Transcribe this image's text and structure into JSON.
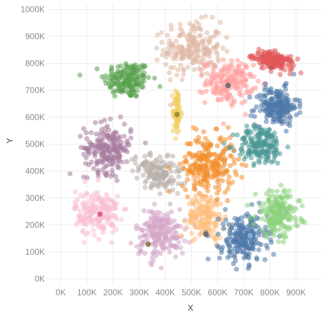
{
  "chart_data": {
    "type": "scatter",
    "title": "",
    "xlabel": "X",
    "ylabel": "Y",
    "xlim": [
      -50000,
      1000000
    ],
    "ylim": [
      -20000,
      1020000
    ],
    "grid": true,
    "x_ticks": [
      0,
      100000,
      200000,
      300000,
      400000,
      500000,
      600000,
      700000,
      800000,
      900000
    ],
    "x_tick_labels": [
      "0K",
      "100K",
      "200K",
      "300K",
      "400K",
      "500K",
      "600K",
      "700K",
      "800K",
      "900K"
    ],
    "y_ticks": [
      0,
      100000,
      200000,
      300000,
      400000,
      500000,
      600000,
      700000,
      800000,
      900000,
      1000000
    ],
    "y_tick_labels": [
      "0K",
      "100K",
      "200K",
      "300K",
      "400K",
      "500K",
      "600K",
      "700K",
      "800K",
      "900K",
      "1000K"
    ],
    "clusters": [
      {
        "color": "#59a14f",
        "center": [
          255000,
          740000
        ],
        "spread": [
          45000,
          35000
        ],
        "n": 170
      },
      {
        "color": "#e0b8a6",
        "center": [
          505000,
          855000
        ],
        "spread": [
          55000,
          50000
        ],
        "n": 200
      },
      {
        "color": "#e15759",
        "center": [
          815000,
          810000
        ],
        "spread": [
          40000,
          15000
        ],
        "n": 160,
        "rotation": -15
      },
      {
        "color": "#ff9d9a",
        "center": [
          645000,
          730000
        ],
        "spread": [
          45000,
          40000
        ],
        "n": 170
      },
      {
        "color": "#4e79a7",
        "center": [
          825000,
          640000
        ],
        "spread": [
          40000,
          35000
        ],
        "n": 200
      },
      {
        "color": "#f1ce63",
        "center": [
          445000,
          620000
        ],
        "spread": [
          8000,
          45000
        ],
        "n": 60
      },
      {
        "color": "#499894",
        "center": [
          765000,
          495000
        ],
        "spread": [
          45000,
          35000
        ],
        "n": 170
      },
      {
        "color": "#a87c9f",
        "center": [
          180000,
          485000
        ],
        "spread": [
          45000,
          45000
        ],
        "n": 210
      },
      {
        "color": "#bab0ac",
        "center": [
          370000,
          395000
        ],
        "spread": [
          45000,
          30000
        ],
        "n": 160,
        "rotation": -25
      },
      {
        "color": "#f28e2b",
        "center": [
          565000,
          425000
        ],
        "spread": [
          50000,
          55000
        ],
        "n": 240
      },
      {
        "color": "#fabfd2",
        "center": [
          140000,
          245000
        ],
        "spread": [
          42000,
          42000
        ],
        "n": 190
      },
      {
        "color": "#d4a6c8",
        "center": [
          380000,
          170000
        ],
        "spread": [
          48000,
          45000
        ],
        "n": 200
      },
      {
        "color": "#ffbe7d",
        "center": [
          555000,
          230000
        ],
        "spread": [
          35000,
          40000
        ],
        "n": 150
      },
      {
        "color": "#4e79a7",
        "center": [
          700000,
          150000
        ],
        "spread": [
          45000,
          45000
        ],
        "n": 220
      },
      {
        "color": "#8cd17d",
        "center": [
          830000,
          240000
        ],
        "spread": [
          42000,
          42000
        ],
        "n": 200
      }
    ],
    "highlights": [
      {
        "x": 150000,
        "y": 240000,
        "color": "#e05780"
      },
      {
        "x": 445000,
        "y": 610000,
        "color": "#9a8a3a"
      },
      {
        "x": 640000,
        "y": 718000,
        "color": "#6b6b6b"
      },
      {
        "x": 335000,
        "y": 128000,
        "color": "#8a7a4a"
      },
      {
        "x": 555000,
        "y": 165000,
        "color": "#6b6b6b"
      },
      {
        "x": 725000,
        "y": 160000,
        "color": "#7fb3d5"
      },
      {
        "x": 805000,
        "y": 785000,
        "color": "#c45a5a"
      }
    ]
  }
}
